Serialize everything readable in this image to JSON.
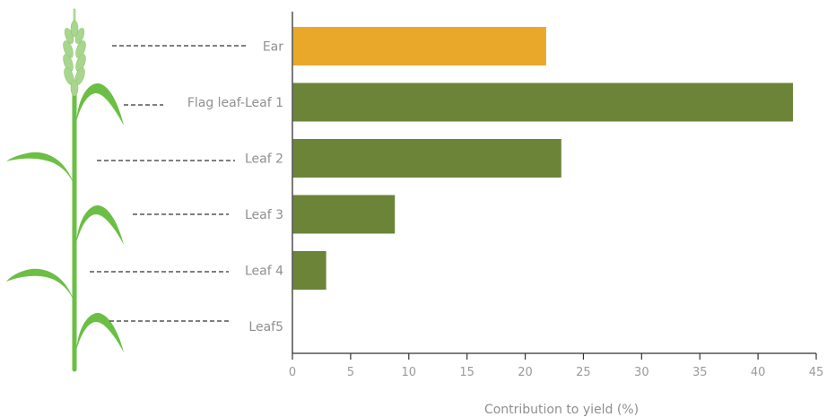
{
  "chart_data": {
    "type": "bar",
    "orientation": "horizontal",
    "categories": [
      "Ear",
      "Flag leaf-Leaf 1",
      "Leaf 2",
      "Leaf 3",
      "Leaf 4",
      "Leaf5"
    ],
    "values": [
      21.8,
      43,
      23.1,
      8.8,
      2.9,
      0
    ],
    "colors": [
      "#eaa82b",
      "#6b8438",
      "#6b8438",
      "#6b8438",
      "#6b8438",
      "#6b8438"
    ],
    "xlabel": "Contribution to yield (%)",
    "ylabel": "",
    "xlim": [
      0,
      45
    ],
    "xticks": [
      "0",
      "5",
      "10",
      "15",
      "20",
      "25",
      "30",
      "35",
      "40",
      "45"
    ],
    "grid": false
  },
  "illustration": {
    "stem_color": "#6bbf45",
    "ear_color": "#a9d68e"
  }
}
